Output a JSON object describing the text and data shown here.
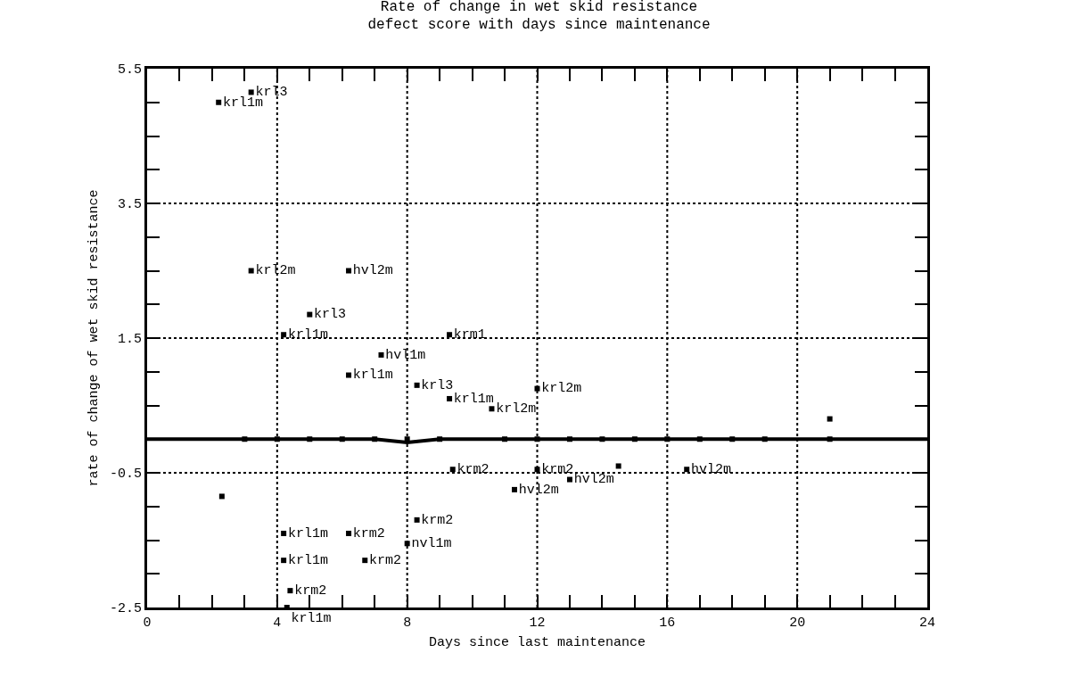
{
  "chart_data": {
    "type": "scatter",
    "title": "Rate of change in wet skid resistance\ndefect score with days since maintenance",
    "xlabel": "Days since last maintenance",
    "ylabel": "rate of change of wet skid resistance",
    "xlim": [
      0,
      24
    ],
    "ylim": [
      -2.5,
      5.5
    ],
    "xticks": [
      0,
      {
        "value": 1,
        "label": null
      },
      {
        "value": 2,
        "label": null
      },
      {
        "value": 3,
        "label": null
      },
      4,
      {
        "value": 5,
        "label": null
      },
      {
        "value": 6,
        "label": null
      },
      {
        "value": 7,
        "label": null
      },
      8,
      {
        "value": 9,
        "label": null
      },
      {
        "value": 10,
        "label": null
      },
      {
        "value": 11,
        "label": null
      },
      12,
      {
        "value": 13,
        "label": null
      },
      {
        "value": 14,
        "label": null
      },
      {
        "value": 15,
        "label": null
      },
      16,
      {
        "value": 17,
        "label": null
      },
      {
        "value": 18,
        "label": null
      },
      {
        "value": 19,
        "label": null
      },
      20,
      {
        "value": 21,
        "label": null
      },
      {
        "value": 22,
        "label": null
      },
      {
        "value": 23,
        "label": null
      },
      24
    ],
    "yticks": [
      -2.5,
      {
        "value": -2,
        "label": null
      },
      {
        "value": -1.5,
        "label": null
      },
      {
        "value": -1,
        "label": null
      },
      -0.5,
      {
        "value": 0,
        "label": null
      },
      {
        "value": 0.5,
        "label": null
      },
      {
        "value": 1,
        "label": null
      },
      1.5,
      {
        "value": 2,
        "label": null
      },
      {
        "value": 2.5,
        "label": null
      },
      {
        "value": 3,
        "label": null
      },
      3.5,
      {
        "value": 4,
        "label": null
      },
      {
        "value": 4.5,
        "label": null
      },
      {
        "value": 5,
        "label": null
      },
      5.5
    ],
    "grid": true,
    "marker": "square",
    "series": [
      {
        "color": "#000000",
        "x": [
          2.2,
          3.2,
          3.2,
          6.2,
          5.0,
          4.2,
          9.3,
          7.2,
          6.2,
          8.3,
          9.3,
          10.6,
          12.0,
          9.4,
          11.3,
          12.0,
          13.0,
          16.6,
          8.3,
          8.0,
          4.2,
          6.2,
          4.2,
          6.7,
          4.4,
          4.3
        ],
        "values": [
          5.0,
          5.15,
          2.5,
          2.5,
          1.85,
          1.55,
          1.55,
          1.25,
          0.95,
          0.8,
          0.6,
          0.45,
          0.75,
          -0.45,
          -0.75,
          -0.45,
          -0.6,
          -0.45,
          -1.2,
          -1.55,
          -1.4,
          -1.4,
          -1.8,
          -1.8,
          -2.25,
          -2.5
        ],
        "value_labels": [
          "krl1m",
          "krl3",
          "krl2m",
          "hvl2m",
          "krl3",
          "krl1m",
          "krm1",
          "hvl1m",
          "krl1m",
          "krl3",
          "krl1m",
          "krl2m",
          "krl2m",
          "krm2",
          "hvl2m",
          "krm2",
          "hvl2m",
          "hvl2m",
          "krm2",
          "nvl1m",
          "krl1m",
          "krm2",
          "krl1m",
          "krm2",
          "krm2",
          "krl1m"
        ]
      },
      {
        "color": "#000000",
        "x": [
          3,
          4,
          5,
          6,
          7,
          8,
          9,
          11,
          12,
          13,
          14,
          15,
          16,
          17,
          18,
          19,
          21,
          21,
          14.5,
          2.3
        ],
        "values": [
          0,
          0,
          0,
          0,
          0,
          0,
          0,
          0,
          0,
          0,
          0,
          0,
          0,
          0,
          0,
          0,
          0,
          0.3,
          -0.4,
          -0.85
        ]
      },
      {
        "type": "line",
        "marker": "none",
        "color": "#000000",
        "x": [
          0,
          7,
          8,
          9,
          24
        ],
        "values": [
          0,
          0,
          -0.05,
          0,
          0
        ]
      }
    ]
  }
}
